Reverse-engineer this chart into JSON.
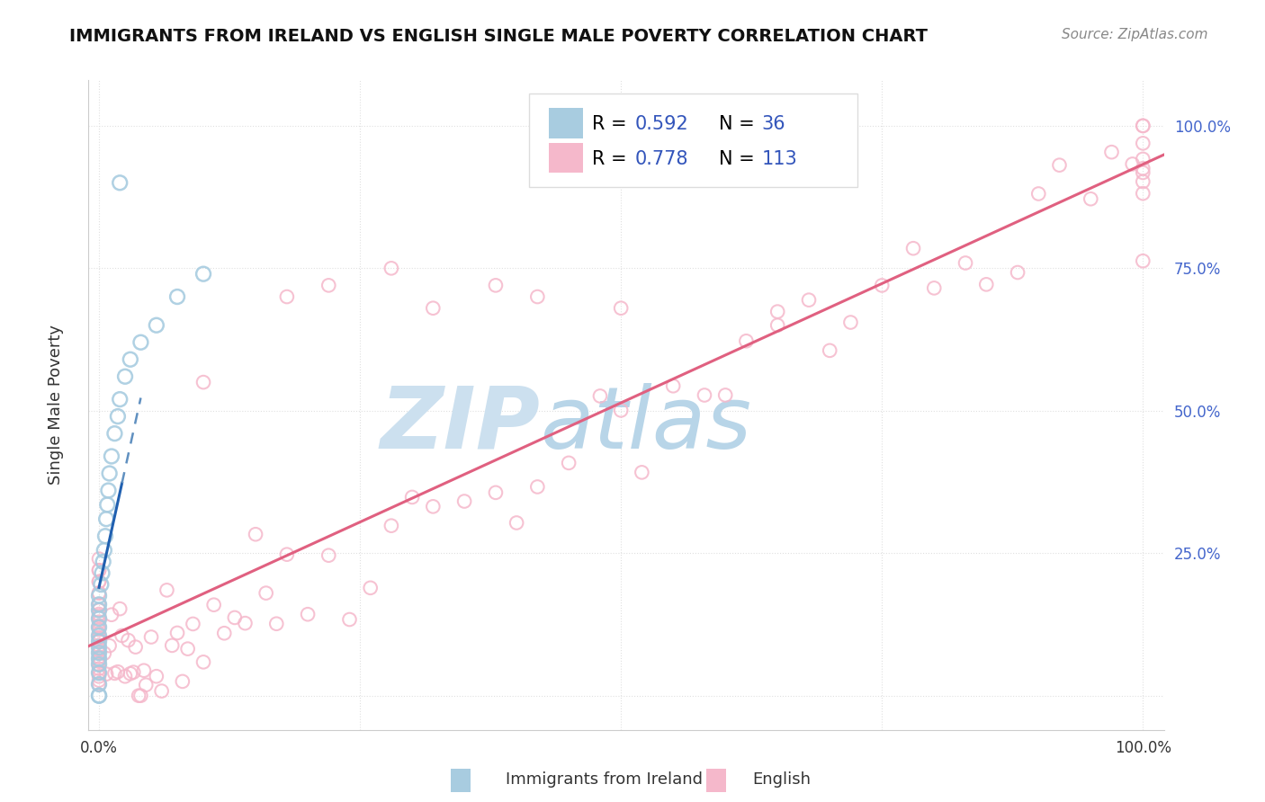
{
  "title": "IMMIGRANTS FROM IRELAND VS ENGLISH SINGLE MALE POVERTY CORRELATION CHART",
  "source": "Source: ZipAtlas.com",
  "ylabel": "Single Male Poverty",
  "legend_label1": "Immigrants from Ireland",
  "legend_label2": "English",
  "R1": "0.592",
  "N1": "36",
  "R2": "0.778",
  "N2": "113",
  "color_ireland": "#a8cce0",
  "color_english": "#f5b8cb",
  "color_ireland_line": "#2060b0",
  "color_english_line": "#e06080",
  "color_ireland_dash": "#6090c0",
  "watermark_zip_color": "#cce0ef",
  "watermark_atlas_color": "#b8d5e8",
  "blue_label_color": "#3355bb",
  "title_color": "#111111",
  "axis_color": "#cccccc",
  "grid_color": "#e0e0e0",
  "text_color": "#333333",
  "right_tick_color": "#4466cc",
  "ytick_labels": [
    "",
    "25.0%",
    "50.0%",
    "75.0%",
    "100.0%"
  ],
  "xtick_labels_show": [
    "0.0%",
    "100.0%"
  ]
}
